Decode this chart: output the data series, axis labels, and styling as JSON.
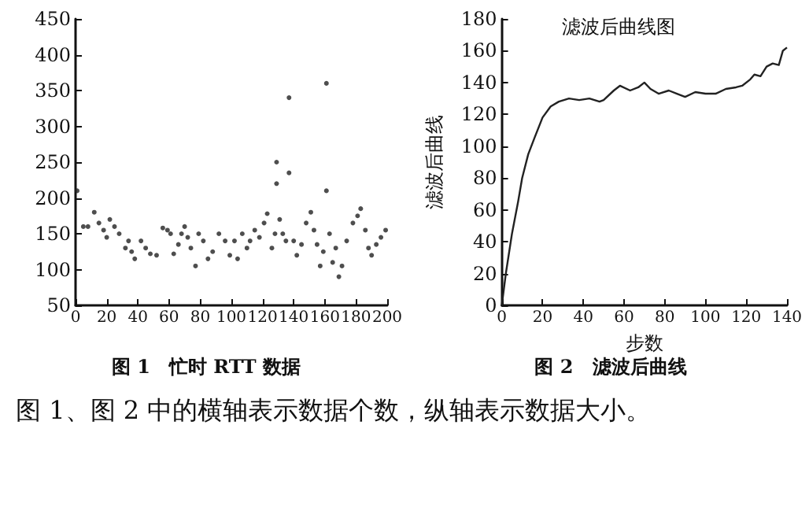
{
  "chart_data": [
    {
      "type": "scatter",
      "annotations": [
        "图 1　忙时 RTT 数据"
      ],
      "xlim": [
        0,
        200
      ],
      "xticks": [
        0,
        20,
        40,
        60,
        80,
        100,
        120,
        140,
        160,
        180,
        200
      ],
      "ylim": [
        50,
        450
      ],
      "yticks": [
        50,
        100,
        150,
        200,
        250,
        300,
        350,
        400,
        450
      ],
      "grid": false,
      "marker": "circle",
      "color": "#222222",
      "x": [
        1,
        5,
        8,
        12,
        15,
        18,
        20,
        22,
        25,
        28,
        32,
        34,
        36,
        38,
        42,
        45,
        48,
        52,
        56,
        59,
        61,
        63,
        66,
        68,
        70,
        72,
        74,
        77,
        79,
        82,
        85,
        88,
        92,
        96,
        99,
        102,
        104,
        107,
        110,
        112,
        115,
        118,
        121,
        123,
        126,
        128,
        129,
        129,
        131,
        133,
        135,
        137,
        137,
        140,
        142,
        145,
        148,
        151,
        153,
        155,
        157,
        159,
        161,
        161,
        163,
        165,
        167,
        169,
        171,
        174,
        178,
        181,
        183,
        186,
        188,
        190,
        193,
        196,
        199
      ],
      "values": [
        210,
        160,
        160,
        180,
        165,
        155,
        145,
        170,
        160,
        150,
        130,
        140,
        125,
        115,
        140,
        130,
        122,
        120,
        158,
        155,
        150,
        122,
        135,
        150,
        160,
        145,
        130,
        105,
        150,
        140,
        115,
        125,
        150,
        140,
        120,
        140,
        115,
        150,
        130,
        140,
        155,
        145,
        165,
        178,
        130,
        150,
        250,
        220,
        170,
        150,
        140,
        340,
        235,
        140,
        120,
        135,
        165,
        180,
        155,
        135,
        105,
        125,
        360,
        210,
        150,
        110,
        130,
        90,
        105,
        140,
        165,
        175,
        185,
        155,
        130,
        120,
        135,
        145,
        155
      ]
    },
    {
      "type": "line",
      "title": "滤波后曲线图",
      "xlabel": "步数",
      "ylabel": "滤波后曲线",
      "annotations": [
        "图 2　滤波后曲线",
        "图 1、图 2 中的横轴表示数据个数，纵轴表示数据大小。"
      ],
      "xlim": [
        0,
        140
      ],
      "xticks": [
        0,
        20,
        40,
        60,
        80,
        100,
        120,
        140
      ],
      "ylim": [
        0,
        180
      ],
      "yticks": [
        0,
        20,
        40,
        60,
        80,
        100,
        120,
        140,
        160,
        180
      ],
      "grid": false,
      "marker": "none",
      "color": "#222222",
      "x": [
        0,
        2,
        5,
        8,
        10,
        13,
        16,
        20,
        24,
        28,
        33,
        38,
        43,
        48,
        50,
        55,
        58,
        63,
        67,
        70,
        73,
        77,
        82,
        86,
        90,
        95,
        100,
        105,
        110,
        115,
        118,
        122,
        124,
        127,
        130,
        133,
        136,
        138,
        140
      ],
      "values": [
        0,
        20,
        45,
        65,
        80,
        95,
        105,
        118,
        125,
        128,
        130,
        129,
        130,
        128,
        129,
        135,
        138,
        135,
        137,
        140,
        136,
        133,
        135,
        133,
        131,
        134,
        133,
        133,
        136,
        137,
        138,
        142,
        145,
        144,
        150,
        152,
        151,
        160,
        162
      ]
    }
  ]
}
